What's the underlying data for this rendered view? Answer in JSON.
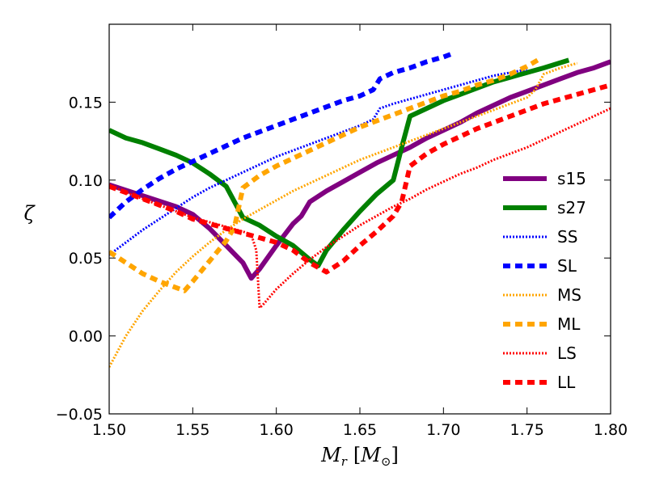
{
  "chart_data": {
    "type": "line",
    "title": "",
    "xlabel": "M_r [M_⊙]",
    "xlabel_parts": {
      "main": "M",
      "sub": "r",
      "unit_open": "[",
      "unit_main": "M",
      "unit_sub": "⊙",
      "unit_close": "]"
    },
    "ylabel": "ζ",
    "xlim": [
      1.5,
      1.8
    ],
    "ylim": [
      -0.05,
      0.2
    ],
    "xticks": [
      1.5,
      1.55,
      1.6,
      1.65,
      1.7,
      1.75,
      1.8
    ],
    "xtick_labels": [
      "1.50",
      "1.55",
      "1.60",
      "1.65",
      "1.70",
      "1.75",
      "1.80"
    ],
    "yticks": [
      -0.05,
      0.0,
      0.05,
      0.1,
      0.15
    ],
    "ytick_labels": [
      "−0.05",
      "0.00",
      "0.05",
      "0.10",
      "0.15"
    ],
    "grid": false,
    "legend_position": "center-right",
    "series": [
      {
        "name": "s15",
        "color": "#800080",
        "style": "solid",
        "width": 6,
        "x": [
          1.5,
          1.52,
          1.54,
          1.55,
          1.56,
          1.57,
          1.58,
          1.585,
          1.59,
          1.6,
          1.61,
          1.615,
          1.62,
          1.63,
          1.64,
          1.65,
          1.66,
          1.67,
          1.68,
          1.69,
          1.7,
          1.71,
          1.72,
          1.73,
          1.74,
          1.75,
          1.76,
          1.77,
          1.78,
          1.79,
          1.8
        ],
        "y": [
          0.097,
          0.09,
          0.083,
          0.078,
          0.069,
          0.058,
          0.047,
          0.037,
          0.043,
          0.058,
          0.072,
          0.077,
          0.086,
          0.093,
          0.099,
          0.105,
          0.111,
          0.116,
          0.121,
          0.127,
          0.132,
          0.137,
          0.143,
          0.148,
          0.153,
          0.157,
          0.161,
          0.165,
          0.169,
          0.172,
          0.176
        ]
      },
      {
        "name": "s27",
        "color": "#008000",
        "style": "solid",
        "width": 6,
        "x": [
          1.5,
          1.51,
          1.52,
          1.53,
          1.54,
          1.55,
          1.56,
          1.57,
          1.58,
          1.59,
          1.6,
          1.61,
          1.62,
          1.625,
          1.63,
          1.64,
          1.65,
          1.66,
          1.67,
          1.675,
          1.68,
          1.69,
          1.7,
          1.71,
          1.72,
          1.73,
          1.74,
          1.75,
          1.76,
          1.775
        ],
        "y": [
          0.132,
          0.127,
          0.124,
          0.12,
          0.116,
          0.111,
          0.104,
          0.096,
          0.076,
          0.071,
          0.064,
          0.058,
          0.049,
          0.045,
          0.055,
          0.068,
          0.08,
          0.091,
          0.1,
          0.121,
          0.141,
          0.146,
          0.151,
          0.155,
          0.159,
          0.163,
          0.166,
          0.169,
          0.172,
          0.177
        ]
      },
      {
        "name": "SS",
        "color": "#0000ff",
        "style": "fine-dotted",
        "width": 3,
        "x": [
          1.5,
          1.51,
          1.52,
          1.53,
          1.54,
          1.55,
          1.56,
          1.57,
          1.58,
          1.59,
          1.6,
          1.61,
          1.62,
          1.63,
          1.64,
          1.65,
          1.658,
          1.662,
          1.67,
          1.68,
          1.69,
          1.7,
          1.71,
          1.72,
          1.73,
          1.74,
          1.75
        ],
        "y": [
          0.052,
          0.06,
          0.068,
          0.075,
          0.082,
          0.089,
          0.095,
          0.1,
          0.105,
          0.11,
          0.115,
          0.119,
          0.123,
          0.127,
          0.131,
          0.135,
          0.139,
          0.146,
          0.149,
          0.152,
          0.155,
          0.158,
          0.161,
          0.164,
          0.167,
          0.169,
          0.171
        ]
      },
      {
        "name": "SL",
        "color": "#0000ff",
        "style": "dashed",
        "width": 6,
        "x": [
          1.5,
          1.51,
          1.52,
          1.53,
          1.54,
          1.55,
          1.56,
          1.57,
          1.58,
          1.59,
          1.6,
          1.61,
          1.62,
          1.63,
          1.64,
          1.65,
          1.658,
          1.662,
          1.67,
          1.68,
          1.69,
          1.7,
          1.705
        ],
        "y": [
          0.076,
          0.086,
          0.094,
          0.101,
          0.107,
          0.112,
          0.117,
          0.122,
          0.127,
          0.131,
          0.135,
          0.139,
          0.143,
          0.147,
          0.151,
          0.154,
          0.158,
          0.165,
          0.169,
          0.172,
          0.176,
          0.179,
          0.181
        ]
      },
      {
        "name": "MS",
        "color": "#ffa500",
        "style": "fine-dotted",
        "width": 3,
        "x": [
          1.5,
          1.51,
          1.52,
          1.53,
          1.54,
          1.55,
          1.56,
          1.57,
          1.58,
          1.59,
          1.6,
          1.61,
          1.62,
          1.63,
          1.64,
          1.65,
          1.66,
          1.67,
          1.68,
          1.69,
          1.7,
          1.71,
          1.72,
          1.73,
          1.74,
          1.75,
          1.755,
          1.76,
          1.77,
          1.78
        ],
        "y": [
          -0.02,
          0.0,
          0.016,
          0.029,
          0.041,
          0.051,
          0.06,
          0.068,
          0.075,
          0.081,
          0.087,
          0.093,
          0.098,
          0.103,
          0.108,
          0.113,
          0.117,
          0.121,
          0.125,
          0.129,
          0.133,
          0.137,
          0.141,
          0.145,
          0.149,
          0.153,
          0.158,
          0.168,
          0.172,
          0.175
        ]
      },
      {
        "name": "ML",
        "color": "#ffa500",
        "style": "dashed",
        "width": 6,
        "x": [
          1.5,
          1.51,
          1.52,
          1.53,
          1.54,
          1.545,
          1.55,
          1.56,
          1.57,
          1.575,
          1.58,
          1.59,
          1.6,
          1.61,
          1.62,
          1.63,
          1.64,
          1.65,
          1.66,
          1.67,
          1.68,
          1.69,
          1.7,
          1.71,
          1.72,
          1.73,
          1.74,
          1.75,
          1.758
        ],
        "y": [
          0.054,
          0.047,
          0.04,
          0.035,
          0.031,
          0.029,
          0.035,
          0.048,
          0.061,
          0.07,
          0.095,
          0.103,
          0.109,
          0.114,
          0.119,
          0.124,
          0.129,
          0.134,
          0.138,
          0.142,
          0.146,
          0.15,
          0.154,
          0.157,
          0.161,
          0.164,
          0.168,
          0.173,
          0.178
        ]
      },
      {
        "name": "LS",
        "color": "#ff0000",
        "style": "fine-dotted",
        "width": 3,
        "x": [
          1.5,
          1.51,
          1.52,
          1.53,
          1.54,
          1.55,
          1.56,
          1.57,
          1.58,
          1.585,
          1.588,
          1.59,
          1.592,
          1.6,
          1.61,
          1.62,
          1.63,
          1.64,
          1.65,
          1.66,
          1.67,
          1.68,
          1.69,
          1.7,
          1.71,
          1.72,
          1.73,
          1.74,
          1.75,
          1.76,
          1.77,
          1.78,
          1.79,
          1.8
        ],
        "y": [
          0.097,
          0.092,
          0.088,
          0.084,
          0.08,
          0.076,
          0.073,
          0.07,
          0.067,
          0.065,
          0.055,
          0.018,
          0.02,
          0.03,
          0.04,
          0.049,
          0.057,
          0.064,
          0.071,
          0.077,
          0.083,
          0.088,
          0.094,
          0.099,
          0.104,
          0.108,
          0.113,
          0.117,
          0.121,
          0.126,
          0.131,
          0.136,
          0.141,
          0.146
        ]
      },
      {
        "name": "LL",
        "color": "#ff0000",
        "style": "dashed",
        "width": 6,
        "x": [
          1.5,
          1.51,
          1.52,
          1.53,
          1.54,
          1.55,
          1.56,
          1.57,
          1.58,
          1.59,
          1.6,
          1.61,
          1.62,
          1.63,
          1.64,
          1.65,
          1.66,
          1.67,
          1.675,
          1.68,
          1.69,
          1.7,
          1.71,
          1.72,
          1.73,
          1.74,
          1.75,
          1.76,
          1.77,
          1.78,
          1.79,
          1.8
        ],
        "y": [
          0.096,
          0.092,
          0.088,
          0.084,
          0.08,
          0.075,
          0.072,
          0.069,
          0.066,
          0.063,
          0.06,
          0.055,
          0.047,
          0.041,
          0.048,
          0.058,
          0.067,
          0.077,
          0.086,
          0.109,
          0.117,
          0.123,
          0.128,
          0.133,
          0.137,
          0.141,
          0.145,
          0.149,
          0.152,
          0.155,
          0.158,
          0.161
        ]
      }
    ]
  }
}
